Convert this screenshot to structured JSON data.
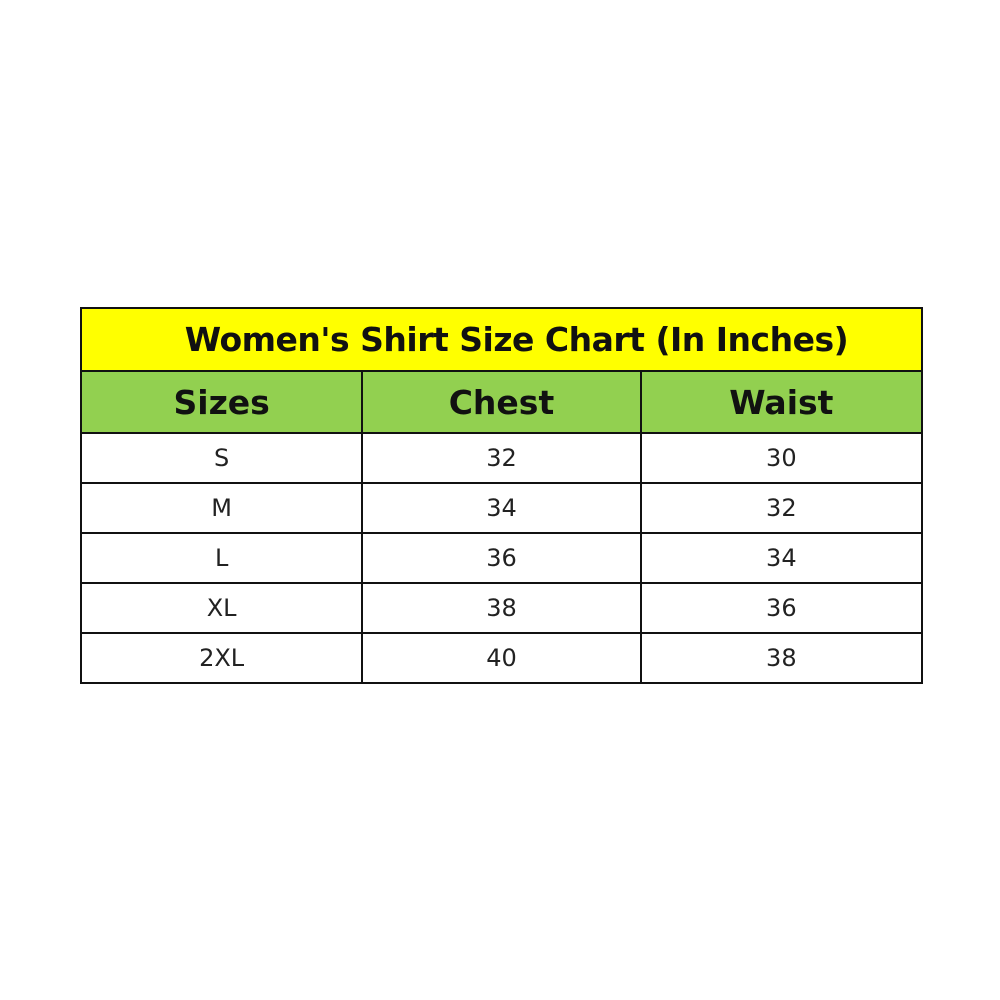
{
  "title": "Women's Shirt Size Chart (In Inches)",
  "colors": {
    "title_bg": "#FFFF00",
    "header_bg": "#92D050"
  },
  "headers": [
    "Sizes",
    "Chest",
    "Waist"
  ],
  "rows": [
    [
      "S",
      "32",
      "30"
    ],
    [
      "M",
      "34",
      "32"
    ],
    [
      "L",
      "36",
      "34"
    ],
    [
      "XL",
      "38",
      "36"
    ],
    [
      "2XL",
      "40",
      "38"
    ]
  ]
}
